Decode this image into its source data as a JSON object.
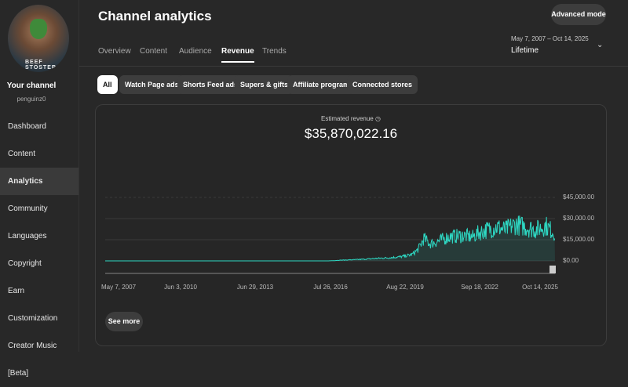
{
  "sidebar": {
    "avatar_caption": "BEEF STOSTER",
    "channel_name": "Your channel",
    "handle": "penguinz0",
    "items": [
      {
        "label": "Dashboard"
      },
      {
        "label": "Content"
      },
      {
        "label": "Analytics",
        "active": true
      },
      {
        "label": "Community"
      },
      {
        "label": "Languages"
      },
      {
        "label": "Copyright"
      },
      {
        "label": "Earn"
      },
      {
        "label": "Customization"
      },
      {
        "label": "Creator Music [Beta]"
      }
    ]
  },
  "header": {
    "title": "Channel analytics",
    "advanced_mode": "Advanced mode",
    "date_range": "May 7, 2007 – Oct 14, 2025",
    "period": "Lifetime",
    "tabs": [
      {
        "label": "Overview"
      },
      {
        "label": "Content"
      },
      {
        "label": "Audience"
      },
      {
        "label": "Revenue",
        "active": true
      },
      {
        "label": "Trends"
      }
    ]
  },
  "filters": [
    {
      "label": "All",
      "active": true
    },
    {
      "label": "Watch Page ads"
    },
    {
      "label": "Shorts Feed ads"
    },
    {
      "label": "Supers & gifts"
    },
    {
      "label": "Affiliate program"
    },
    {
      "label": "Connected stores"
    }
  ],
  "card": {
    "label": "Estimated revenue",
    "value": "$35,870,022.16",
    "see_more": "See more"
  },
  "colors": {
    "accent": "#2ed8c3",
    "background": "#282828"
  },
  "chart_data": {
    "type": "area",
    "x_tick_labels": [
      "May 7, 2007",
      "Jun 3, 2010",
      "Jun 29, 2013",
      "Jul 26, 2016",
      "Aug 22, 2019",
      "Sep 18, 2022",
      "Oct 14, 2025"
    ],
    "y_tick_labels": [
      "$0.00",
      "$15,000.00",
      "$30,000.00",
      "$45,000.00"
    ],
    "ylim": [
      0,
      45000
    ],
    "grid": true,
    "points": [
      [
        "2007-05",
        0
      ],
      [
        "2016-07",
        0
      ],
      [
        "2017-01",
        500
      ],
      [
        "2017-07",
        800
      ],
      [
        "2018-01",
        1200
      ],
      [
        "2018-07",
        1800
      ],
      [
        "2019-01",
        2200
      ],
      [
        "2019-07",
        3000
      ],
      [
        "2019-12",
        4500
      ],
      [
        "2020-03",
        8000
      ],
      [
        "2020-06",
        16000
      ],
      [
        "2020-09",
        12000
      ],
      [
        "2021-01",
        14000
      ],
      [
        "2021-06",
        17000
      ],
      [
        "2022-01",
        18000
      ],
      [
        "2022-06",
        17000
      ],
      [
        "2022-09",
        20000
      ],
      [
        "2023-01",
        22000
      ],
      [
        "2023-06",
        24000
      ],
      [
        "2023-10",
        22000
      ],
      [
        "2024-03",
        26000
      ],
      [
        "2024-08",
        24000
      ],
      [
        "2025-01",
        22000
      ],
      [
        "2025-06",
        25000
      ],
      [
        "2025-10",
        20000
      ]
    ]
  }
}
